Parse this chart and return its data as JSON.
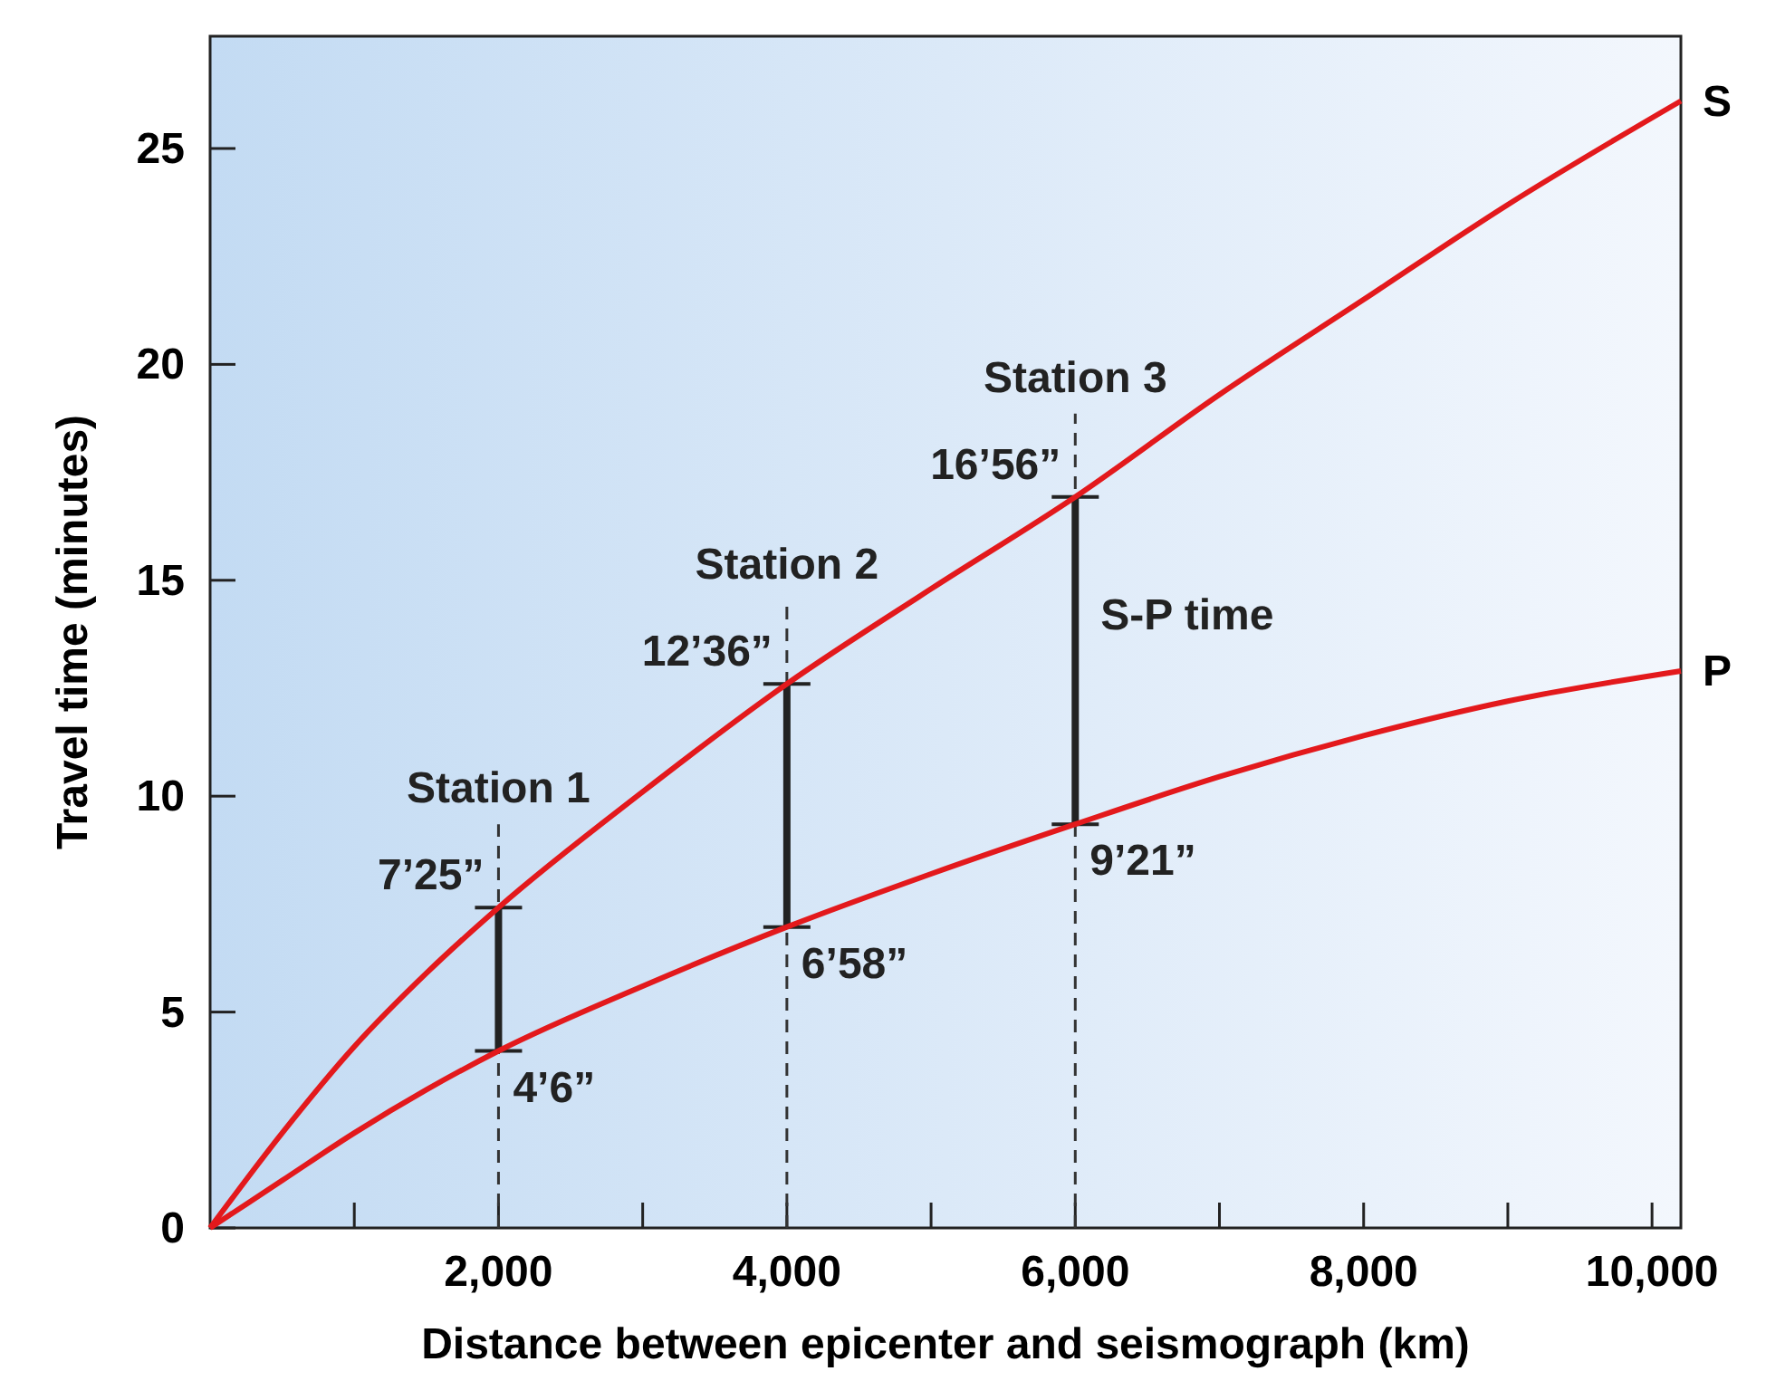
{
  "chart_data": {
    "type": "line",
    "xlabel": "Distance between epicenter and seismograph (km)",
    "ylabel": "Travel time (minutes)",
    "xlim": [
      0,
      10200
    ],
    "ylim": [
      0,
      27.6
    ],
    "xticks": [
      {
        "value": 1000,
        "label": null
      },
      {
        "value": 2000,
        "label": "2,000"
      },
      {
        "value": 3000,
        "label": null
      },
      {
        "value": 4000,
        "label": "4,000"
      },
      {
        "value": 5000,
        "label": null
      },
      {
        "value": 6000,
        "label": "6,000"
      },
      {
        "value": 7000,
        "label": null
      },
      {
        "value": 8000,
        "label": "8,000"
      },
      {
        "value": 9000,
        "label": null
      },
      {
        "value": 10000,
        "label": "10,000"
      }
    ],
    "yticks": [
      0,
      5,
      10,
      15,
      20,
      25
    ],
    "grid": false,
    "legend": false,
    "marker": "none",
    "line_style": "solid",
    "series": [
      {
        "name": "S",
        "color": "#e3191c",
        "x": [
          0,
          500,
          1000,
          1500,
          2000,
          3000,
          4000,
          5000,
          6000,
          7000,
          8000,
          9000,
          10200
        ],
        "values": [
          0,
          2.2,
          4.2,
          5.9,
          7.42,
          10.1,
          12.6,
          14.8,
          16.93,
          19.3,
          21.5,
          23.7,
          26.1
        ]
      },
      {
        "name": "P",
        "color": "#e3191c",
        "x": [
          0,
          500,
          1000,
          1500,
          2000,
          3000,
          4000,
          5000,
          6000,
          7000,
          8000,
          9000,
          10200
        ],
        "values": [
          0,
          1.1,
          2.2,
          3.2,
          4.1,
          5.6,
          6.97,
          8.2,
          9.35,
          10.45,
          11.4,
          12.2,
          12.9
        ]
      }
    ],
    "ref_lines": [
      {
        "axis": "x",
        "value": 2000,
        "label": "Station 1",
        "line_style": "dashed",
        "color": "#333333"
      },
      {
        "axis": "x",
        "value": 4000,
        "label": "Station 2",
        "line_style": "dashed",
        "color": "#333333"
      },
      {
        "axis": "x",
        "value": 6000,
        "label": "Station 3",
        "line_style": "dashed",
        "color": "#333333"
      }
    ],
    "annotations": [
      {
        "text": "7’25”",
        "x": 2000,
        "y": 7.42
      },
      {
        "text": "4’6”",
        "x": 2000,
        "y": 4.1
      },
      {
        "text": "12’36”",
        "x": 4000,
        "y": 12.6
      },
      {
        "text": "6’58”",
        "x": 4000,
        "y": 6.97
      },
      {
        "text": "16’56”",
        "x": 6000,
        "y": 16.93
      },
      {
        "text": "9’21”",
        "x": 6000,
        "y": 9.35
      },
      {
        "text": "S-P time",
        "x": 6000,
        "y": 14.2
      }
    ]
  }
}
